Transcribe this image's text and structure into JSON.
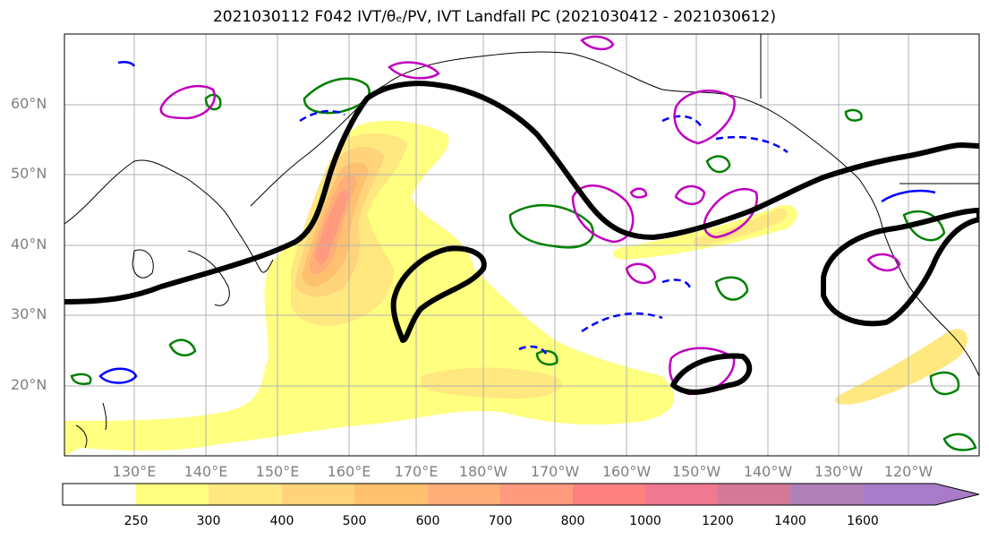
{
  "title": {
    "text": "2021030112 F042 IVT/θₑ/PV, IVT Landfall PC (2021030412 - 2021030612)"
  },
  "map": {
    "lat_labels": [
      "60°N",
      "50°N",
      "40°N",
      "30°N",
      "20°N"
    ],
    "lon_labels": [
      "130°E",
      "140°E",
      "150°E",
      "160°E",
      "170°E",
      "180°W",
      "170°W",
      "160°W",
      "150°W",
      "140°W",
      "130°W",
      "120°W"
    ],
    "colors": {
      "frame": "#000000",
      "grid": "#b0b0b0",
      "theta_e": "#008000",
      "pv_low": "#0000ff",
      "pv_high": "#c000c0",
      "landfall_pc": "#000000"
    }
  },
  "colorbar": {
    "labels": [
      "250",
      "300",
      "400",
      "500",
      "600",
      "700",
      "800",
      "1000",
      "1200",
      "1400",
      "1600"
    ],
    "colors": [
      "#ffffff",
      "#ffff80",
      "#ffe880",
      "#ffd47a",
      "#ffc070",
      "#ffae78",
      "#ff9a7e",
      "#ff8080",
      "#f07890",
      "#d47898",
      "#b080b8",
      "#a87cc8"
    ]
  }
}
